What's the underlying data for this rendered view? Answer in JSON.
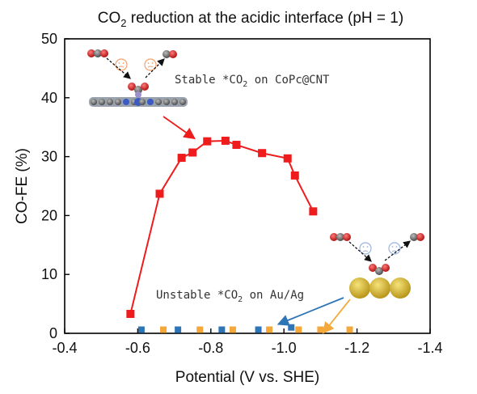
{
  "chart_data": {
    "type": "scatter",
    "title_main": "CO",
    "title_sub": "2",
    "title_rest": " reduction at the acidic interface (pH = 1)",
    "xlabel": "Potential (V vs. SHE)",
    "ylabel": "CO-FE (%)",
    "xlim": [
      -0.4,
      -1.4
    ],
    "ylim": [
      0,
      50
    ],
    "x_ticks": [
      -0.4,
      -0.6,
      -0.8,
      -1.0,
      -1.2,
      -1.4
    ],
    "x_tick_labels": [
      "-0.4",
      "-0.6",
      "-0.8",
      "-1.0",
      "-1.2",
      "-1.4"
    ],
    "y_ticks": [
      0,
      10,
      20,
      30,
      40,
      50
    ],
    "y_tick_labels": [
      "0",
      "10",
      "20",
      "30",
      "40",
      "50"
    ],
    "grid": false,
    "series": [
      {
        "color": "#ee1c1c",
        "marker": "square",
        "line": true,
        "x": [
          -0.58,
          -0.66,
          -0.72,
          -0.75,
          -0.79,
          -0.84,
          -0.87,
          -0.94,
          -1.01,
          -1.03,
          -1.08
        ],
        "y": [
          3.3,
          23.7,
          29.8,
          30.7,
          32.6,
          32.7,
          32.0,
          30.6,
          29.7,
          26.8,
          20.7
        ]
      },
      {
        "color": "#2e75b6",
        "marker": "square",
        "line": false,
        "x": [
          -0.61,
          -0.71,
          -0.83,
          -0.93,
          -1.02
        ],
        "y": [
          0.3,
          0.3,
          0.3,
          0.5,
          1.0
        ]
      },
      {
        "color": "#f4a83a",
        "marker": "square",
        "line": false,
        "x": [
          -0.67,
          -0.77,
          -0.86,
          -0.96,
          -1.04,
          -1.1,
          -1.18
        ],
        "y": [
          0.2,
          0.3,
          0.2,
          0.2,
          0.3,
          0.2,
          0.2
        ]
      }
    ],
    "annotations": [
      {
        "pre": "Stable *CO",
        "sub": "2",
        "post": " on CoPc@CNT"
      },
      {
        "pre": "Unstable *CO",
        "sub": "2",
        "post": " on Au/Ag"
      }
    ]
  },
  "colors": {
    "red_series": "#ee1c1c",
    "blue_series": "#2e75b6",
    "orange_series": "#f4a83a",
    "gold_atom": "#d4b62a",
    "oxygen_atom": "#d42a2a",
    "carbon_atom": "#7a7a7a"
  }
}
